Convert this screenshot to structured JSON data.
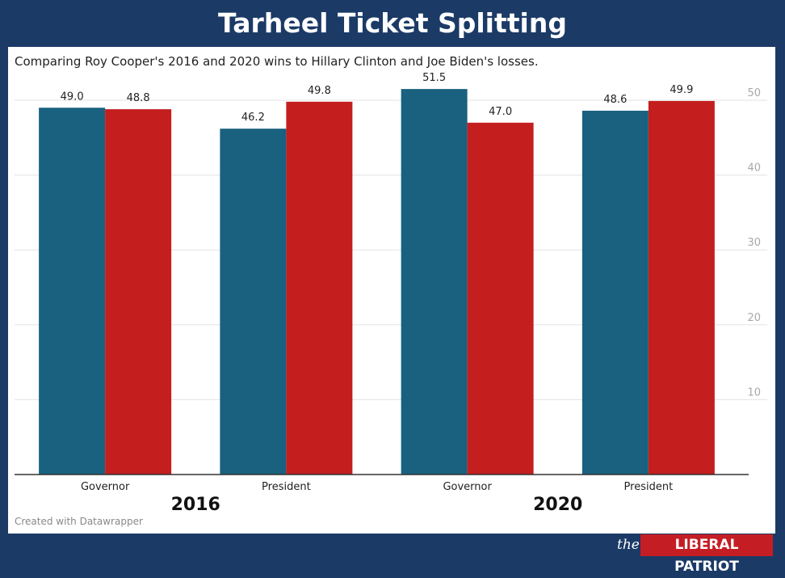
{
  "title": "Tarheel Ticket Splitting",
  "subtitle": "Comparing Roy Cooper's 2016 and 2020 wins to Hillary Clinton and Joe Biden's losses.",
  "credit": "Created with Datawrapper",
  "footer": {
    "the": "the",
    "brand": "LIBERAL PATRIOT"
  },
  "colors": {
    "background": "#1b3a66",
    "series_a": "#19617f",
    "series_b": "#c41e1f",
    "brand": "#c41e24"
  },
  "chart_data": {
    "type": "bar",
    "categories": [
      "Governor",
      "President",
      "Governor",
      "President"
    ],
    "groups": [
      {
        "label": "2016",
        "categories": [
          0,
          1
        ]
      },
      {
        "label": "2020",
        "categories": [
          2,
          3
        ]
      }
    ],
    "series": [
      {
        "values": [
          49.0,
          46.2,
          51.5,
          48.6
        ],
        "labels": [
          "49.0",
          "46.2",
          "51.5",
          "48.6"
        ],
        "color": "#19617f"
      },
      {
        "values": [
          48.8,
          49.8,
          47.0,
          49.9
        ],
        "labels": [
          "48.8",
          "49.8",
          "47.0",
          "49.9"
        ],
        "color": "#c41e1f"
      }
    ],
    "yticks": [
      10,
      20,
      30,
      40,
      50
    ],
    "ylim": [
      0,
      50
    ],
    "y_axis_side": "right",
    "grid": true,
    "legend": "none"
  }
}
